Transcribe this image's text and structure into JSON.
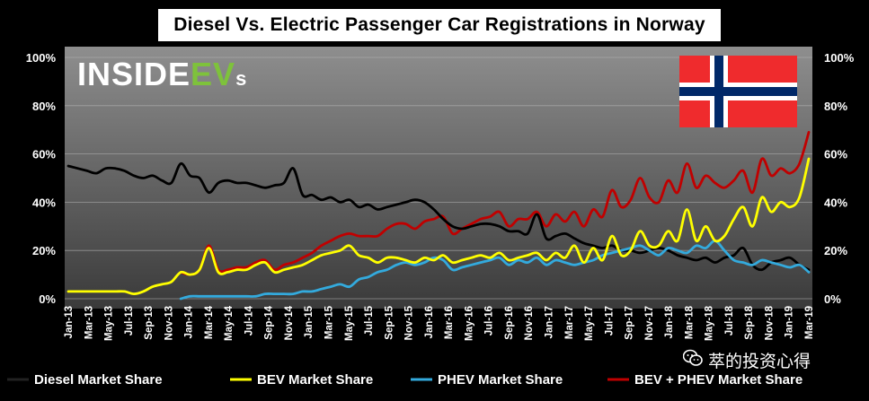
{
  "branding": {
    "logo_main": "INSIDE",
    "logo_ev": "EV",
    "logo_s": "s",
    "watermark": "萃的投资心得"
  },
  "colors": {
    "diesel": "#000000",
    "bev": "#ffff00",
    "phev": "#33aadd",
    "combined": "#c00000",
    "flag_red": "#ef2b2d",
    "flag_blue": "#002868"
  },
  "chart_data": {
    "type": "line",
    "title": "Diesel Vs. Electric Passenger Car Registrations in Norway",
    "xlabel": "",
    "ylabel": "",
    "ylim": [
      0,
      100
    ],
    "y_ticks": [
      "0%",
      "20%",
      "40%",
      "60%",
      "80%",
      "100%"
    ],
    "x_tick_labels": [
      "Jan-13",
      "Mar-13",
      "May-13",
      "Jul-13",
      "Sep-13",
      "Nov-13",
      "Jan-14",
      "Mar-14",
      "May-14",
      "Jul-14",
      "Sep-14",
      "Nov-14",
      "Jan-15",
      "Mar-15",
      "May-15",
      "Jul-15",
      "Sep-15",
      "Nov-15",
      "Jan-16",
      "Mar-16",
      "May-16",
      "Jul-16",
      "Sep-16",
      "Nov-16",
      "Jan-17",
      "Mar-17",
      "May-17",
      "Jul-17",
      "Sep-17",
      "Nov-17",
      "Jan-18",
      "Mar-18",
      "May-18",
      "Jul-18",
      "Sep-18",
      "Nov-18",
      "Jan-19",
      "Mar-19"
    ],
    "legend_position": "bottom",
    "series": [
      {
        "name": "Diesel Market Share",
        "color": "#000000",
        "values": [
          55,
          54,
          53,
          52,
          54,
          54,
          53,
          51,
          50,
          51,
          49,
          48,
          56,
          51,
          50,
          44,
          48,
          49,
          48,
          48,
          47,
          46,
          47,
          48,
          54,
          43,
          43,
          41,
          42,
          40,
          41,
          38,
          39,
          37,
          38,
          39,
          40,
          41,
          40,
          37,
          33,
          30,
          29,
          30,
          31,
          31,
          30,
          28,
          28,
          27,
          35,
          25,
          26,
          27,
          25,
          23,
          22,
          21,
          22,
          20,
          20,
          19,
          20,
          21,
          20,
          18,
          17,
          16,
          17,
          15,
          17,
          18,
          21,
          14,
          12,
          15,
          16,
          17,
          14,
          12
        ]
      },
      {
        "name": "BEV Market Share",
        "color": "#ffff00",
        "values": [
          3,
          3,
          3,
          3,
          3,
          3,
          3,
          2,
          3,
          5,
          6,
          7,
          11,
          10,
          12,
          21,
          11,
          11,
          12,
          12,
          14,
          15,
          11,
          12,
          13,
          14,
          16,
          18,
          19,
          20,
          22,
          18,
          17,
          15,
          17,
          17,
          16,
          15,
          17,
          16,
          18,
          15,
          16,
          17,
          18,
          17,
          19,
          16,
          17,
          18,
          19,
          16,
          19,
          17,
          22,
          15,
          21,
          16,
          26,
          18,
          20,
          28,
          22,
          22,
          28,
          24,
          37,
          24,
          30,
          24,
          26,
          33,
          38,
          30,
          42,
          36,
          40,
          38,
          42,
          58
        ]
      },
      {
        "name": "PHEV Market Share",
        "color": "#33aadd",
        "values": [
          null,
          null,
          null,
          null,
          null,
          null,
          null,
          null,
          null,
          null,
          null,
          null,
          0,
          1,
          1,
          1,
          1,
          1,
          1,
          1,
          1,
          2,
          2,
          2,
          2,
          3,
          3,
          4,
          5,
          6,
          5,
          8,
          9,
          11,
          12,
          14,
          15,
          14,
          15,
          17,
          16,
          12,
          13,
          14,
          15,
          16,
          17,
          14,
          16,
          15,
          17,
          14,
          16,
          15,
          14,
          15,
          16,
          18,
          19,
          20,
          21,
          22,
          20,
          18,
          21,
          20,
          19,
          22,
          21,
          24,
          20,
          16,
          15,
          14,
          16,
          15,
          14,
          13,
          14,
          11
        ]
      },
      {
        "name": "BEV + PHEV Market Share",
        "color": "#c00000",
        "values": [
          null,
          null,
          null,
          null,
          null,
          null,
          null,
          null,
          null,
          null,
          null,
          null,
          11,
          10,
          12,
          22,
          12,
          12,
          13,
          13,
          15,
          16,
          12,
          14,
          15,
          17,
          19,
          22,
          24,
          26,
          27,
          26,
          26,
          26,
          29,
          31,
          31,
          29,
          32,
          33,
          34,
          27,
          29,
          31,
          33,
          34,
          36,
          30,
          33,
          33,
          36,
          30,
          35,
          32,
          36,
          30,
          37,
          34,
          45,
          38,
          41,
          50,
          42,
          40,
          49,
          44,
          56,
          46,
          51,
          48,
          46,
          49,
          53,
          44,
          58,
          51,
          54,
          52,
          56,
          69
        ]
      }
    ]
  }
}
